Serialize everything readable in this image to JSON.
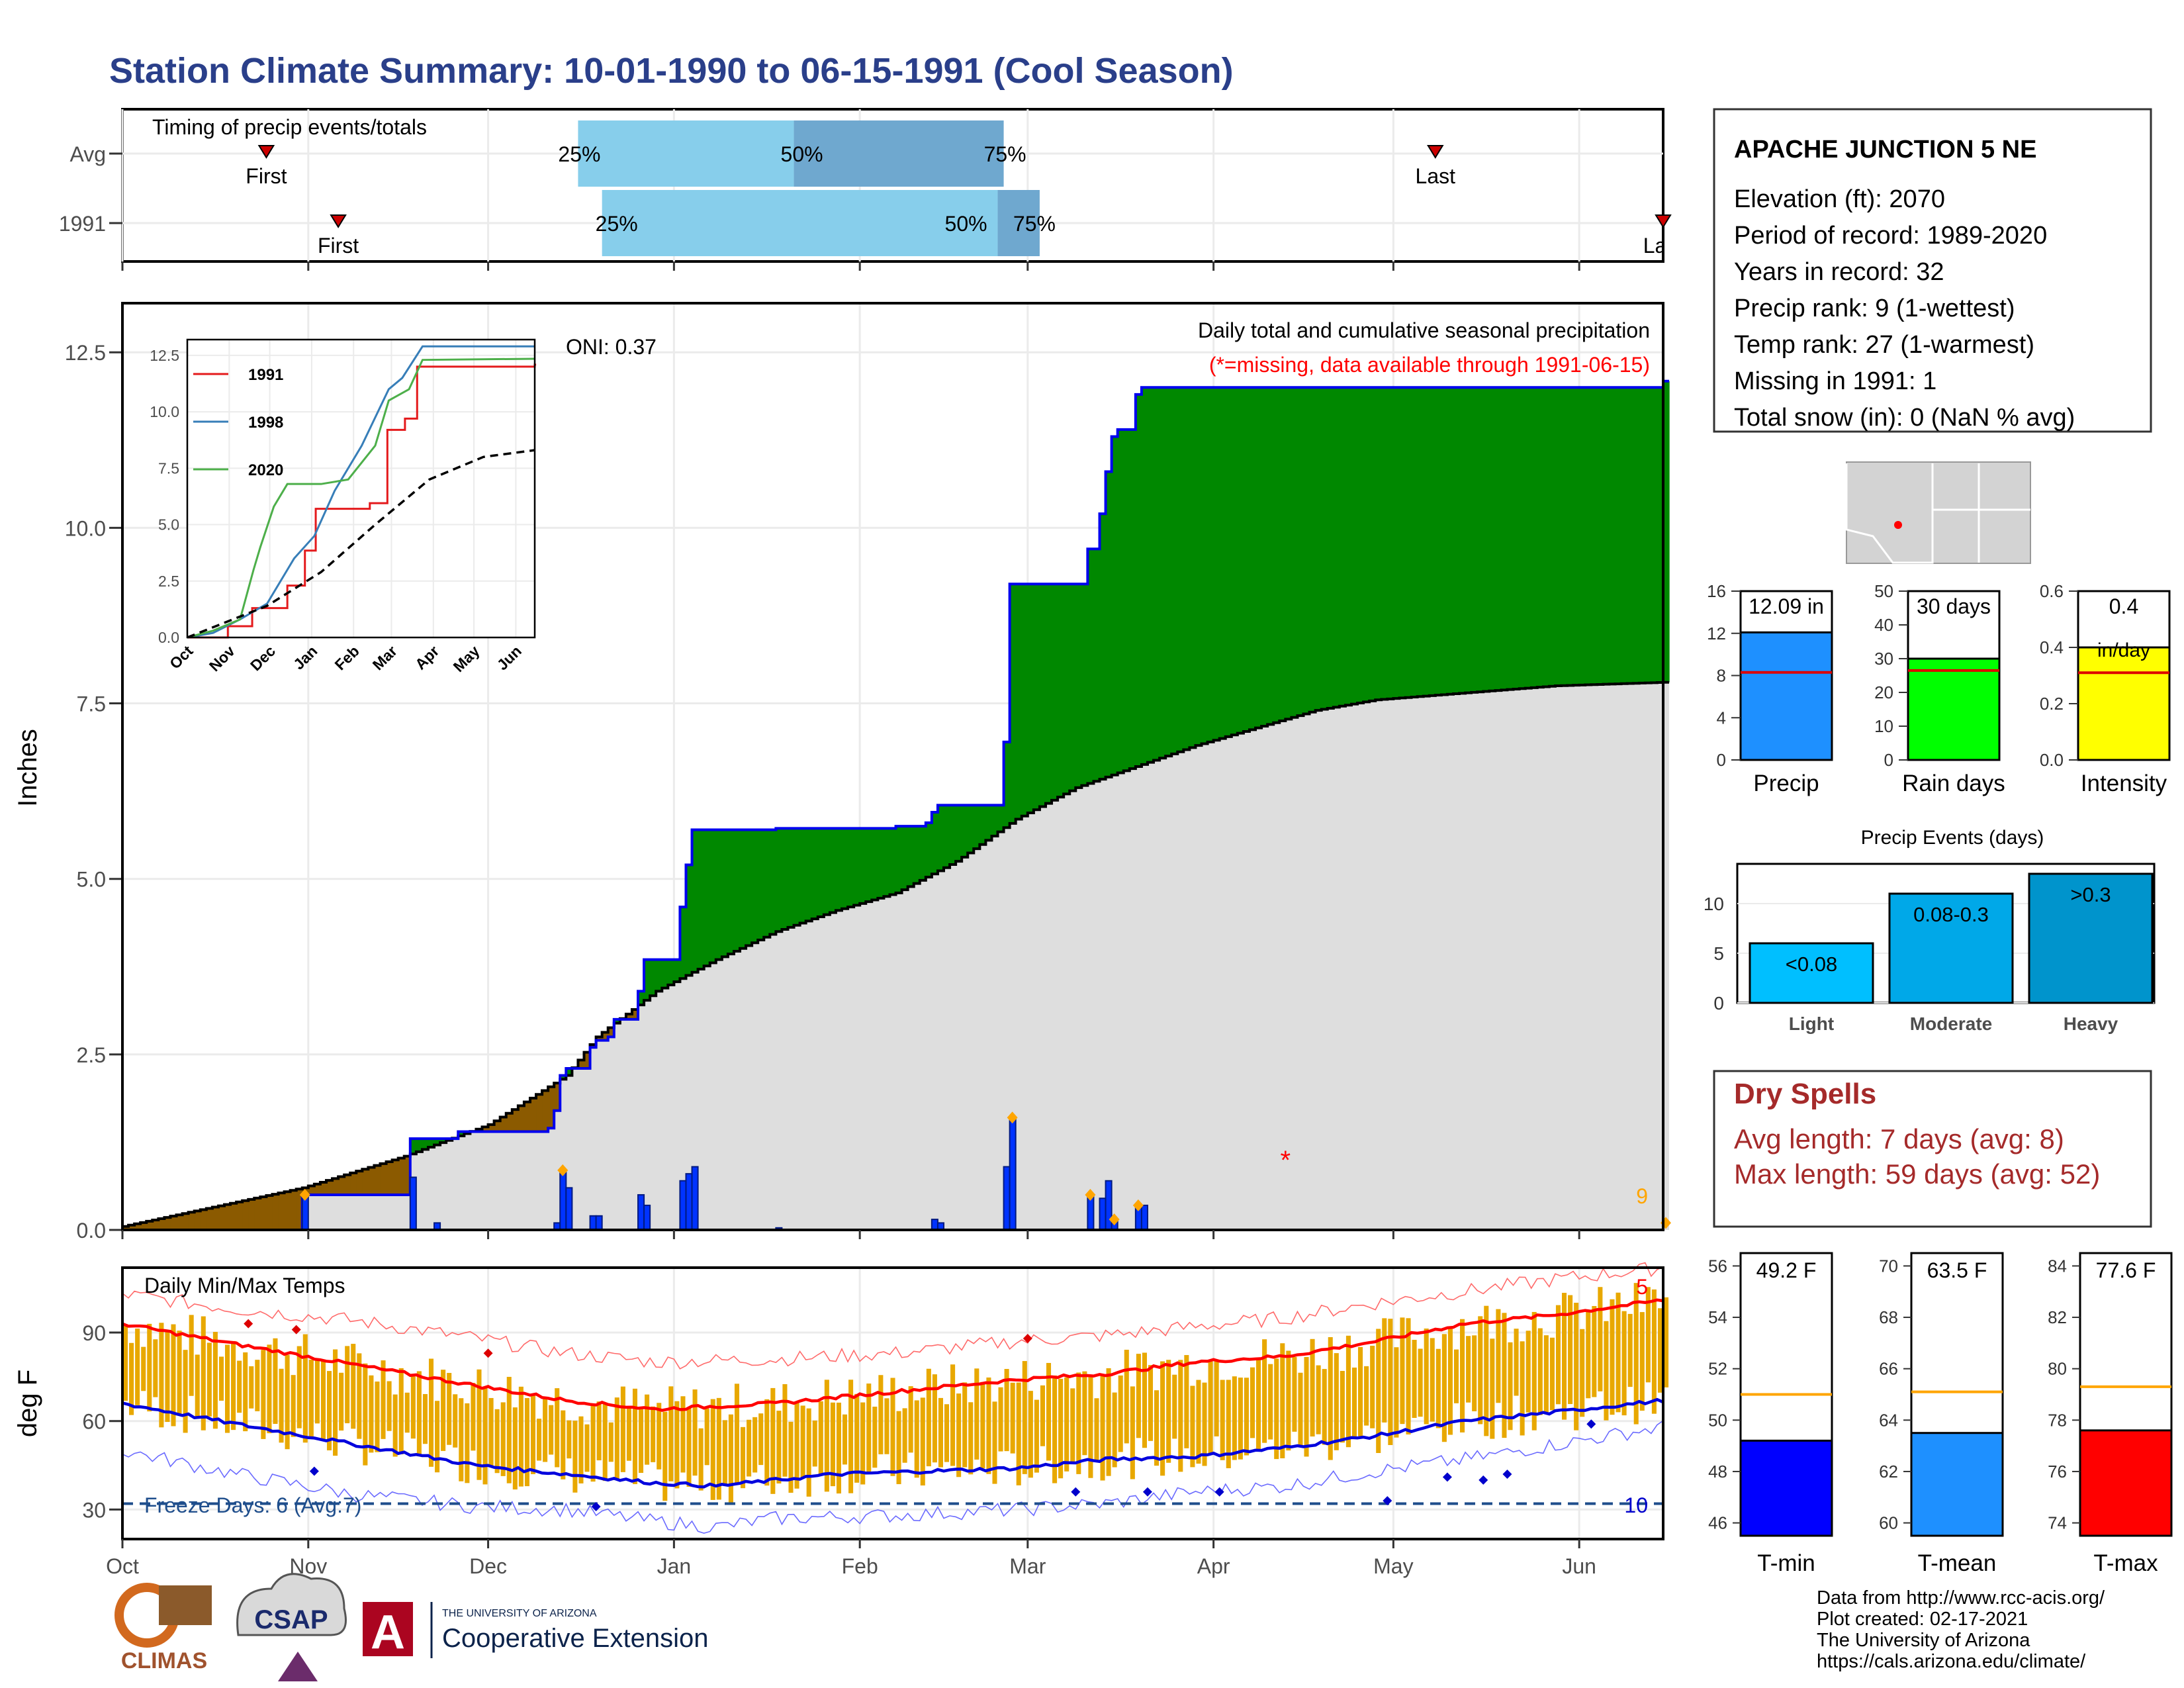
{
  "title": "Station Climate Summary: 10-01-1990 to 06-15-1991 (Cool Season)",
  "colors": {
    "title": "#2a3f8a",
    "wet": "#008800",
    "dry": "#8b5a00",
    "normal": "#dedede",
    "bars": "#0033ff",
    "missing": "#ff0000",
    "drytext": "#a52a2a",
    "tminBar": "#0000ff",
    "tmeanBar": "#1e90ff",
    "tmaxBar": "#ff0000",
    "rangeBar": "#e8a800"
  },
  "timing": {
    "label": "Timing of precip events/totals",
    "rows": [
      {
        "name": "Avg",
        "first_label": "First",
        "last_label": "Last",
        "first_date": "1990-10-25",
        "last_date": "1991-05-08",
        "q25_label": "25%",
        "q50_label": "50%",
        "q75_label": "75%",
        "q25_date": "1990-12-16",
        "q50_date": "1991-01-21",
        "q75_date": "1991-02-25"
      },
      {
        "name": "1991",
        "first_label": "First",
        "last_label": "Last",
        "first_date": "1990-11-06",
        "last_date": "1991-06-15",
        "q25_label": "25%",
        "q50_label": "50%",
        "q75_label": "75%",
        "q25_date": "1990-12-20",
        "q50_date": "1991-02-24",
        "q75_date": "1991-03-03"
      }
    ]
  },
  "station": {
    "name": "APACHE JUNCTION 5 NE",
    "lines": [
      "Elevation (ft): 2070",
      "Period of record: 1989-2020",
      "Years in record: 32",
      "Precip rank: 9 (1-wettest)",
      "Temp rank: 27 (1-warmest)",
      "Missing in 1991: 1",
      "Total snow (in): 0 (NaN % avg)"
    ]
  },
  "precip_panel": {
    "ylabel": "Inches",
    "oni": "ONI: 0.37",
    "title": "Daily total and cumulative seasonal precipitation",
    "missing_note": "(*=missing, data available through 1991-06-15)",
    "corner_count": "9"
  },
  "temp_panel": {
    "ylabel": "deg F",
    "title": "Daily Min/Max Temps",
    "freeze_label": "Freeze Days: 6 (Avg:7)",
    "count_hot": "5",
    "count_cold": "10"
  },
  "month_labels": [
    "Oct",
    "Nov",
    "Dec",
    "Jan",
    "Feb",
    "Mar",
    "Apr",
    "May",
    "Jun"
  ],
  "chart_data": [
    {
      "type": "area",
      "name": "cumulative precipitation",
      "ylim": [
        0,
        13.2
      ],
      "y_ticks": [
        "0.0",
        "2.5",
        "5.0",
        "7.5",
        "10.0",
        "12.5"
      ],
      "observed_cumulative": [
        [
          1,
          0
        ],
        [
          31,
          0
        ],
        [
          31,
          0.5
        ],
        [
          48,
          0.5
        ],
        [
          49,
          1.3
        ],
        [
          56,
          1.3
        ],
        [
          57,
          1.4
        ],
        [
          72,
          1.45
        ],
        [
          73,
          1.7
        ],
        [
          74,
          2.2
        ],
        [
          75,
          2.3
        ],
        [
          78,
          2.3
        ],
        [
          79,
          2.6
        ],
        [
          80,
          2.7
        ],
        [
          82,
          2.75
        ],
        [
          83,
          3.0
        ],
        [
          86,
          3.0
        ],
        [
          87,
          3.4
        ],
        [
          88,
          3.85
        ],
        [
          93,
          3.85
        ],
        [
          94,
          4.6
        ],
        [
          95,
          5.2
        ],
        [
          96,
          5.7
        ],
        [
          110,
          5.72
        ],
        [
          130,
          5.75
        ],
        [
          135,
          5.8
        ],
        [
          136,
          5.95
        ],
        [
          137,
          6.05
        ],
        [
          147,
          6.05
        ],
        [
          148,
          6.95
        ],
        [
          148.5,
          7.3
        ],
        [
          149,
          9.2
        ],
        [
          161,
          9.2
        ],
        [
          162,
          9.7
        ],
        [
          164,
          10.2
        ],
        [
          165,
          10.8
        ],
        [
          166,
          11.3
        ],
        [
          167,
          11.4
        ],
        [
          170,
          11.9
        ],
        [
          171,
          12.0
        ],
        [
          258,
          12.0
        ],
        [
          258,
          12.09
        ]
      ],
      "normal_cumulative": [
        [
          1,
          0.05
        ],
        [
          31,
          0.6
        ],
        [
          48,
          1.05
        ],
        [
          62,
          1.5
        ],
        [
          75,
          2.2
        ],
        [
          80,
          2.75
        ],
        [
          90,
          3.4
        ],
        [
          100,
          3.85
        ],
        [
          110,
          4.25
        ],
        [
          120,
          4.55
        ],
        [
          130,
          4.8
        ],
        [
          140,
          5.25
        ],
        [
          150,
          5.85
        ],
        [
          160,
          6.3
        ],
        [
          170,
          6.6
        ],
        [
          180,
          6.9
        ],
        [
          190,
          7.15
        ],
        [
          200,
          7.4
        ],
        [
          210,
          7.55
        ],
        [
          225,
          7.65
        ],
        [
          240,
          7.75
        ],
        [
          258,
          7.8
        ]
      ],
      "daily_bars": [
        [
          31,
          0.5
        ],
        [
          49,
          0.75
        ],
        [
          53,
          0.1
        ],
        [
          73,
          0.1
        ],
        [
          74,
          0.85
        ],
        [
          75,
          0.6
        ],
        [
          79,
          0.2
        ],
        [
          80,
          0.2
        ],
        [
          87,
          0.5
        ],
        [
          88,
          0.35
        ],
        [
          94,
          0.7
        ],
        [
          95,
          0.8
        ],
        [
          96,
          0.9
        ],
        [
          110,
          0.03
        ],
        [
          136,
          0.15
        ],
        [
          137,
          0.1
        ],
        [
          148,
          0.9
        ],
        [
          149,
          1.6
        ],
        [
          162,
          0.5
        ],
        [
          164,
          0.45
        ],
        [
          165,
          0.7
        ],
        [
          166,
          0.15
        ],
        [
          170,
          0.35
        ],
        [
          171,
          0.35
        ]
      ],
      "missing_days": [
        [
          195,
          1.0
        ]
      ],
      "record_marks": [
        31,
        74,
        162,
        166,
        170,
        258,
        149
      ]
    },
    {
      "type": "line",
      "name": "inset cumulative by year",
      "series": [
        {
          "name": "1991",
          "color": "#e41a1c",
          "values": [
            [
              1,
              0
            ],
            [
              31,
              0
            ],
            [
              31,
              0.5
            ],
            [
              49,
              1.3
            ],
            [
              75,
              2.3
            ],
            [
              88,
              3.85
            ],
            [
              96,
              5.7
            ],
            [
              136,
              5.95
            ],
            [
              149,
              9.2
            ],
            [
              162,
              9.7
            ],
            [
              171,
              12.0
            ],
            [
              258,
              12.09
            ]
          ]
        },
        {
          "name": "1998",
          "color": "#377eb8",
          "values": [
            [
              1,
              0
            ],
            [
              20,
              0.2
            ],
            [
              40,
              0.8
            ],
            [
              60,
              1.5
            ],
            [
              75,
              3.0
            ],
            [
              80,
              3.5
            ],
            [
              95,
              4.5
            ],
            [
              110,
              6.5
            ],
            [
              130,
              8.5
            ],
            [
              150,
              11.0
            ],
            [
              160,
              11.5
            ],
            [
              175,
              12.9
            ],
            [
              258,
              12.9
            ]
          ]
        },
        {
          "name": "2020",
          "color": "#4daf4a",
          "values": [
            [
              1,
              0
            ],
            [
              20,
              0.3
            ],
            [
              40,
              0.8
            ],
            [
              50,
              3.0
            ],
            [
              55,
              4.0
            ],
            [
              65,
              5.8
            ],
            [
              75,
              6.8
            ],
            [
              100,
              6.8
            ],
            [
              120,
              7.0
            ],
            [
              140,
              8.5
            ],
            [
              150,
              10.5
            ],
            [
              165,
              11.0
            ],
            [
              175,
              12.3
            ],
            [
              258,
              12.35
            ]
          ]
        }
      ],
      "average_line": [
        [
          1,
          0
        ],
        [
          60,
          1.4
        ],
        [
          100,
          2.9
        ],
        [
          140,
          5.0
        ],
        [
          180,
          7.0
        ],
        [
          220,
          8.0
        ],
        [
          258,
          8.3
        ]
      ],
      "xticks": [
        "Oct",
        "Nov",
        "Dec",
        "Jan",
        "Feb",
        "Mar",
        "Apr",
        "May",
        "Jun"
      ],
      "yticks": [
        "0.0",
        "2.5",
        "5.0",
        "7.5",
        "10.0",
        "12.5"
      ]
    },
    {
      "type": "bar",
      "name": "precip summary",
      "panels": [
        {
          "id": "precip",
          "label": "Precip",
          "value": 12.09,
          "avg": 8.3,
          "ylim": [
            0,
            16
          ],
          "ticks": [
            0,
            4,
            8,
            12,
            16
          ],
          "color": "#1e90ff",
          "value_label": "12.09 in",
          "extra": ""
        },
        {
          "id": "raindays",
          "label": "Rain days",
          "value": 30,
          "avg": 26.5,
          "ylim": [
            0,
            50
          ],
          "ticks": [
            0,
            10,
            20,
            30,
            40,
            50
          ],
          "color": "#00ff00",
          "value_label": "30 days",
          "extra": ""
        },
        {
          "id": "intensity",
          "label": "Intensity",
          "value": 0.4,
          "avg": 0.31,
          "ylim": [
            0,
            0.6
          ],
          "ticks": [
            "0.0",
            "0.2",
            "0.4",
            "0.6"
          ],
          "color": "#ffff00",
          "value_label": "0.4",
          "extra": "in/day"
        }
      ]
    },
    {
      "type": "bar",
      "name": "Precip Events (days)",
      "title": "Precip Events (days)",
      "categories": [
        "Light",
        "Moderate",
        "Heavy"
      ],
      "labels": [
        "<0.08",
        "0.08-0.3",
        ">0.3"
      ],
      "values": [
        6,
        11,
        13
      ],
      "colors": [
        "#00bfff",
        "#00a8e8",
        "#0094cc"
      ],
      "ylim": [
        0,
        14
      ],
      "ticks": [
        0,
        5,
        10
      ]
    },
    {
      "type": "bar",
      "name": "Daily Min/Max Temps",
      "ylim": [
        20,
        112
      ],
      "ticks": [
        30,
        60,
        90
      ],
      "freeze_line": 32,
      "avg_max": [
        [
          1,
          93
        ],
        [
          20,
          86
        ],
        [
          40,
          79
        ],
        [
          60,
          72
        ],
        [
          75,
          67
        ],
        [
          90,
          64
        ],
        [
          110,
          66
        ],
        [
          130,
          70
        ],
        [
          150,
          74
        ],
        [
          165,
          76
        ],
        [
          180,
          80
        ],
        [
          195,
          82
        ],
        [
          210,
          87
        ],
        [
          225,
          93
        ],
        [
          240,
          96
        ],
        [
          258,
          101
        ]
      ],
      "avg_min": [
        [
          1,
          66
        ],
        [
          20,
          59
        ],
        [
          40,
          52
        ],
        [
          60,
          45
        ],
        [
          75,
          42
        ],
        [
          90,
          39
        ],
        [
          100,
          38
        ],
        [
          120,
          42
        ],
        [
          150,
          44
        ],
        [
          165,
          47
        ],
        [
          180,
          48
        ],
        [
          195,
          51
        ],
        [
          210,
          55
        ],
        [
          225,
          60
        ],
        [
          240,
          63
        ],
        [
          258,
          67
        ]
      ],
      "rec_max": [
        [
          1,
          103
        ],
        [
          20,
          98
        ],
        [
          40,
          94
        ],
        [
          60,
          88
        ],
        [
          75,
          83
        ],
        [
          90,
          80
        ],
        [
          110,
          81
        ],
        [
          130,
          83
        ],
        [
          150,
          87
        ],
        [
          165,
          89
        ],
        [
          180,
          92
        ],
        [
          195,
          95
        ],
        [
          210,
          100
        ],
        [
          225,
          104
        ],
        [
          240,
          108
        ],
        [
          258,
          112
        ]
      ],
      "rec_min": [
        [
          1,
          50
        ],
        [
          20,
          42
        ],
        [
          40,
          35
        ],
        [
          60,
          31
        ],
        [
          75,
          30
        ],
        [
          90,
          26
        ],
        [
          100,
          24
        ],
        [
          110,
          27
        ],
        [
          130,
          28
        ],
        [
          150,
          30
        ],
        [
          165,
          32
        ],
        [
          180,
          36
        ],
        [
          195,
          38
        ],
        [
          210,
          43
        ],
        [
          225,
          47
        ],
        [
          240,
          52
        ],
        [
          258,
          58
        ]
      ]
    },
    {
      "type": "bar",
      "name": "temperature summary",
      "panels": [
        {
          "label": "T-min",
          "value": 49.2,
          "avg": 51.0,
          "ylim": [
            45.5,
            56.5
          ],
          "ticks": [
            46,
            48,
            50,
            52,
            54,
            56
          ],
          "color": "#0000ff",
          "value_label": "49.2 F"
        },
        {
          "label": "T-mean",
          "value": 63.5,
          "avg": 65.1,
          "ylim": [
            59.5,
            70.5
          ],
          "ticks": [
            60,
            62,
            64,
            66,
            68,
            70
          ],
          "color": "#1e90ff",
          "value_label": "63.5 F"
        },
        {
          "label": "T-max",
          "value": 77.6,
          "avg": 79.3,
          "ylim": [
            73.5,
            84.5
          ],
          "ticks": [
            74,
            76,
            78,
            80,
            82,
            84
          ],
          "color": "#ff0000",
          "value_label": "77.6 F"
        }
      ]
    }
  ],
  "dry_spells": {
    "title": "Dry Spells",
    "avg": "Avg length: 7 days (avg: 8)",
    "max": "Max length: 59 days (avg: 52)"
  },
  "credits": [
    "Data from http://www.rcc-acis.org/",
    "Plot created: 02-17-2021",
    "The University of Arizona",
    "https://cals.arizona.edu/climate/"
  ],
  "logos": {
    "climas": "CLIMAS",
    "csap": "CSAP",
    "ua_top": "THE UNIVERSITY OF ARIZONA",
    "ua_bottom": "Cooperative Extension"
  }
}
